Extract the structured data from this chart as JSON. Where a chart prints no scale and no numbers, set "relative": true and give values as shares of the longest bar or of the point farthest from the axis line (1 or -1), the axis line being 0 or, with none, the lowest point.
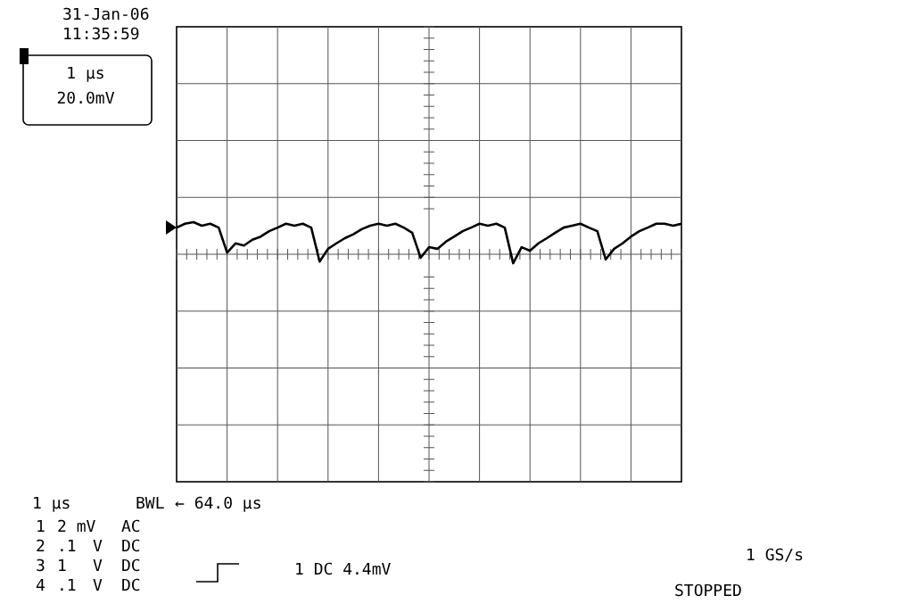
{
  "chart_data": {
    "type": "line",
    "relative": true,
    "title": "31-Jan-06",
    "subtitle": "11:35:59",
    "grid": true,
    "marker": "none",
    "line_style": "solid",
    "categories": [
      null,
      null,
      null,
      null,
      null,
      null,
      null,
      null,
      null,
      null,
      null,
      null,
      null,
      null,
      null,
      null,
      null,
      null,
      null,
      null,
      null,
      null,
      null,
      null,
      null,
      null,
      null,
      null,
      null,
      null,
      null,
      null,
      null,
      null,
      null,
      null,
      null,
      null,
      null,
      null,
      null,
      null,
      null,
      null,
      null,
      null,
      null,
      null,
      null,
      null,
      null,
      null,
      null,
      null,
      null,
      null,
      null,
      null,
      null,
      null,
      null
    ],
    "series": [
      {
        "color": "#000000",
        "values": [
          0.83,
          0.95,
          1,
          0.89,
          0.95,
          0.83,
          0.05,
          0.34,
          0.27,
          0.45,
          0.55,
          0.72,
          0.83,
          0.95,
          0.89,
          0.95,
          0.83,
          -0.23,
          0.17,
          0.34,
          0.5,
          0.62,
          0.78,
          0.89,
          0.95,
          0.89,
          0.95,
          0.83,
          0.67,
          -0.11,
          0.22,
          0.17,
          0.39,
          0.55,
          0.72,
          0.83,
          0.95,
          0.89,
          0.95,
          0.83,
          -0.28,
          0.22,
          0.11,
          0.34,
          0.5,
          0.67,
          0.83,
          0.89,
          0.95,
          0.83,
          0.72,
          -0.16,
          0.17,
          0.34,
          0.55,
          0.72,
          0.83,
          0.95,
          0.95,
          0.89,
          0.95
        ]
      }
    ],
    "annotations": [
      "1 μs",
      "20.0mV",
      "1 μs",
      "BWL",
      "← 64.0 μs",
      "1",
      "2 mV",
      "AC",
      "2",
      ".1",
      "V",
      "DC",
      "3",
      "1",
      "V",
      "DC",
      "4",
      ".1",
      "V",
      "DC",
      "1 DC 4.4mV",
      "1 GS/s",
      "STOPPED"
    ]
  }
}
